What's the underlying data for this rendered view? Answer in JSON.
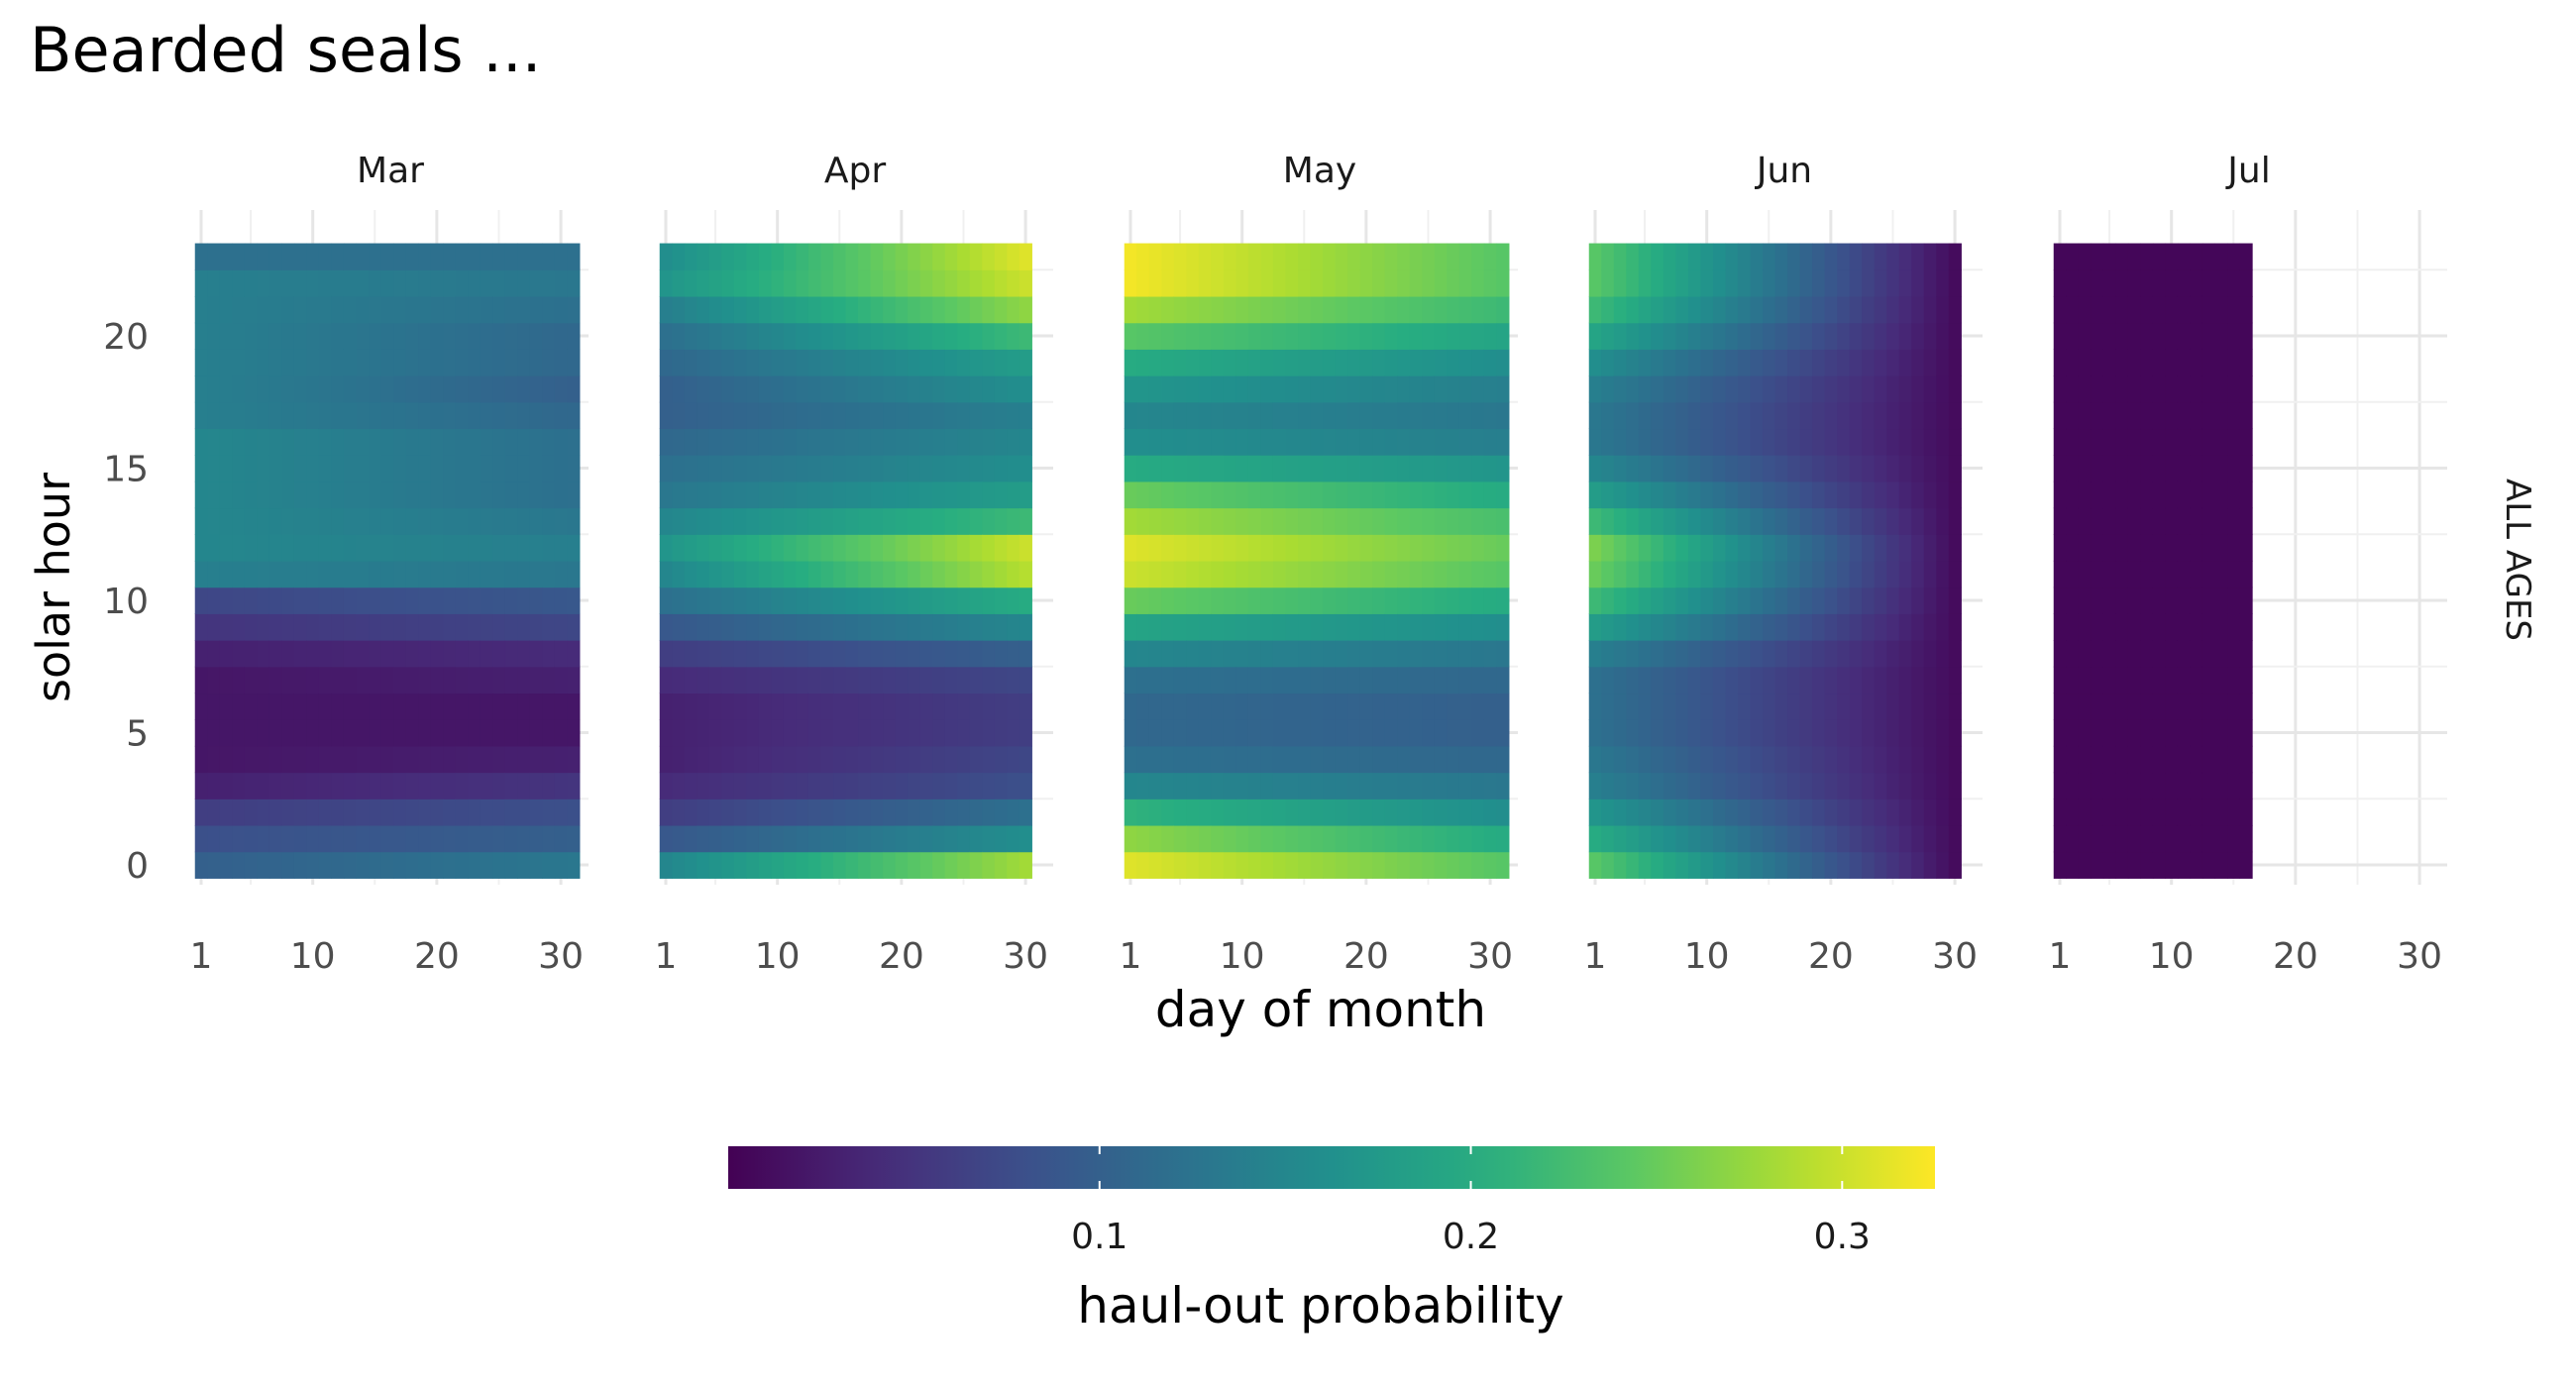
{
  "chart_data": {
    "type": "heatmap",
    "title": "Bearded seals ...",
    "xlabel": "day of month",
    "ylabel": "solar hour",
    "strip_label": "ALL AGES",
    "panels": [
      {
        "label": "Mar",
        "days": 31
      },
      {
        "label": "Apr",
        "days": 30
      },
      {
        "label": "May",
        "days": 31
      },
      {
        "label": "Jun",
        "days": 30
      },
      {
        "label": "Jul",
        "days": 16
      }
    ],
    "x_ticks": [
      1,
      10,
      20,
      30
    ],
    "xlim": [
      1,
      31
    ],
    "y_ticks": [
      0,
      5,
      10,
      15,
      20
    ],
    "ylim": [
      0,
      23
    ],
    "legend": {
      "title": "haul-out probability",
      "min": 0.0,
      "max": 0.325,
      "ticks": [
        0.1,
        0.2,
        0.3
      ],
      "tick_labels": [
        "0.1",
        "0.2",
        "0.3"
      ],
      "colormap": "viridis",
      "position": "bottom"
    },
    "hourly_profile": [
      {
        "label": "Mar",
        "start": [
          0.1,
          0.08,
          0.06,
          0.03,
          0.02,
          0.02,
          0.02,
          0.02,
          0.03,
          0.05,
          0.07,
          0.14,
          0.15,
          0.15,
          0.15,
          0.15,
          0.15,
          0.14,
          0.14,
          0.14,
          0.14,
          0.14,
          0.14,
          0.12
        ],
        "end": [
          0.13,
          0.1,
          0.08,
          0.05,
          0.03,
          0.02,
          0.02,
          0.03,
          0.04,
          0.07,
          0.09,
          0.13,
          0.14,
          0.13,
          0.12,
          0.12,
          0.12,
          0.11,
          0.1,
          0.11,
          0.11,
          0.12,
          0.13,
          0.12
        ]
      },
      {
        "label": "Apr",
        "start": [
          0.15,
          0.09,
          0.06,
          0.04,
          0.03,
          0.03,
          0.03,
          0.04,
          0.06,
          0.09,
          0.12,
          0.15,
          0.17,
          0.15,
          0.13,
          0.12,
          0.11,
          0.1,
          0.1,
          0.11,
          0.12,
          0.14,
          0.17,
          0.16
        ],
        "end": [
          0.28,
          0.16,
          0.12,
          0.08,
          0.07,
          0.06,
          0.06,
          0.07,
          0.1,
          0.15,
          0.2,
          0.29,
          0.3,
          0.22,
          0.18,
          0.16,
          0.15,
          0.14,
          0.16,
          0.18,
          0.22,
          0.27,
          0.3,
          0.31
        ]
      },
      {
        "label": "May",
        "start": [
          0.31,
          0.27,
          0.21,
          0.15,
          0.12,
          0.11,
          0.11,
          0.12,
          0.15,
          0.19,
          0.25,
          0.3,
          0.31,
          0.28,
          0.25,
          0.2,
          0.16,
          0.15,
          0.17,
          0.2,
          0.24,
          0.28,
          0.32,
          0.32
        ],
        "end": [
          0.24,
          0.2,
          0.16,
          0.13,
          0.11,
          0.1,
          0.1,
          0.11,
          0.13,
          0.16,
          0.2,
          0.24,
          0.25,
          0.23,
          0.2,
          0.17,
          0.14,
          0.13,
          0.14,
          0.16,
          0.19,
          0.22,
          0.24,
          0.24
        ]
      },
      {
        "label": "Jun",
        "start": [
          0.24,
          0.2,
          0.17,
          0.14,
          0.13,
          0.12,
          0.12,
          0.12,
          0.14,
          0.18,
          0.22,
          0.25,
          0.26,
          0.22,
          0.18,
          0.15,
          0.13,
          0.13,
          0.14,
          0.16,
          0.19,
          0.22,
          0.24,
          0.24
        ],
        "end": [
          0.01,
          0.01,
          0.01,
          0.01,
          0.01,
          0.01,
          0.01,
          0.01,
          0.01,
          0.01,
          0.01,
          0.01,
          0.01,
          0.01,
          0.01,
          0.01,
          0.01,
          0.01,
          0.01,
          0.01,
          0.01,
          0.01,
          0.01,
          0.01
        ]
      },
      {
        "label": "Jul",
        "start": [
          0.005,
          0.005,
          0.005,
          0.005,
          0.005,
          0.005,
          0.005,
          0.005,
          0.005,
          0.005,
          0.005,
          0.005,
          0.005,
          0.005,
          0.005,
          0.005,
          0.005,
          0.005,
          0.005,
          0.005,
          0.005,
          0.005,
          0.005,
          0.005
        ],
        "end": [
          0.005,
          0.005,
          0.005,
          0.005,
          0.005,
          0.005,
          0.005,
          0.005,
          0.005,
          0.005,
          0.005,
          0.005,
          0.005,
          0.005,
          0.005,
          0.005,
          0.005,
          0.005,
          0.005,
          0.005,
          0.005,
          0.005,
          0.005,
          0.005
        ]
      }
    ]
  }
}
